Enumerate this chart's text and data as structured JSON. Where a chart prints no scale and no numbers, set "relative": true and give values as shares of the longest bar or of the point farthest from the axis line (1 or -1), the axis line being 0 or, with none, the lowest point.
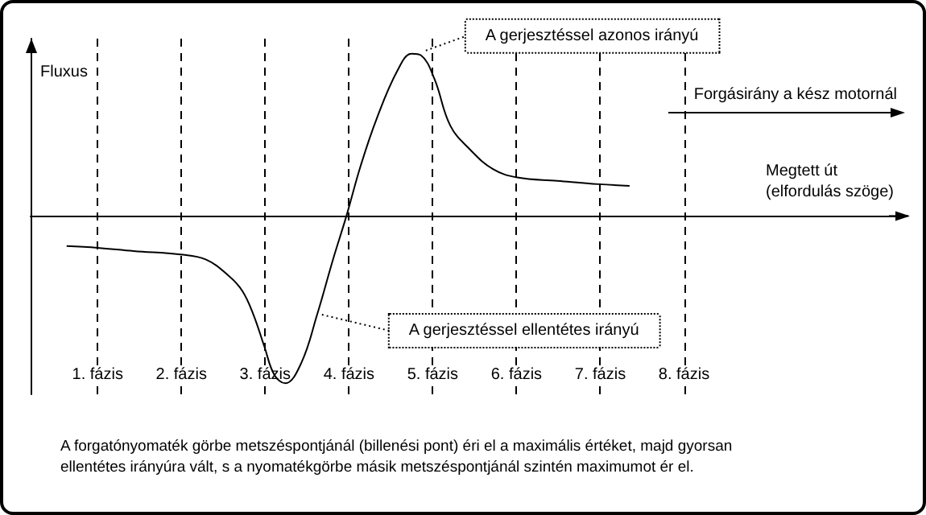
{
  "chart_data": {
    "type": "line",
    "relative": true,
    "ylabel": "Fluxus",
    "xlabel": "Megtett út\n(elfordulás szöge)",
    "xlim": [
      0.2,
      10.6
    ],
    "xticks": [
      {
        "value": 1,
        "label": "1. fázis"
      },
      {
        "value": 2,
        "label": "2. fázis"
      },
      {
        "value": 3,
        "label": "3. fázis"
      },
      {
        "value": 4,
        "label": "4. fázis"
      },
      {
        "value": 5,
        "label": "5. fázis"
      },
      {
        "value": 6,
        "label": "6. fázis"
      },
      {
        "value": 7,
        "label": "7. fázis"
      },
      {
        "value": 8,
        "label": "8. fázis"
      }
    ],
    "grid": "x",
    "marker": "none",
    "series": [
      {
        "color": "#000000",
        "x": [
          0.63,
          1.0,
          1.43,
          1.99,
          2.29,
          2.57,
          2.73,
          2.86,
          2.99,
          3.11,
          3.24,
          3.43,
          3.62,
          3.81,
          3.97,
          4.14,
          4.33,
          4.58,
          4.75,
          4.86,
          5.02,
          5.21,
          5.44,
          5.72,
          6.01,
          6.49,
          6.98,
          7.35
        ],
        "values": [
          -0.18,
          -0.19,
          -0.21,
          -0.23,
          -0.26,
          -0.36,
          -0.45,
          -0.59,
          -0.78,
          -0.95,
          -1,
          -0.88,
          -0.59,
          -0.26,
          0,
          0.3,
          0.58,
          0.87,
          0.97,
          0.96,
          0.82,
          0.54,
          0.4,
          0.28,
          0.23,
          0.21,
          0.19,
          0.18
        ]
      }
    ],
    "annotations": [
      {
        "text": "A gerjesztéssel azonos irányú",
        "x": 4.86,
        "y": 0.96
      },
      {
        "text": "A gerjesztéssel ellentétes irányú",
        "x": 3.62,
        "y": -0.59
      },
      "Forgásirány a kész motornál",
      "A forgatónyomaték görbe metszéspontjánál (billenési pont) éri el a maximális értéket, majd gyorsan ellentétes irányúra vált, s a nyomatékgörbe másik metszéspontjánál szintén maximumot ér el."
    ]
  }
}
